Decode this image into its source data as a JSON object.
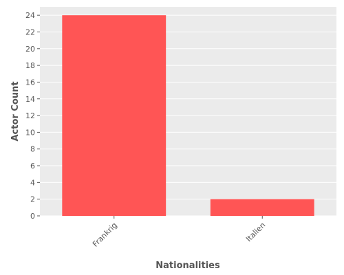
{
  "chart_data": {
    "type": "bar",
    "categories": [
      "Frankrig",
      "Italien"
    ],
    "values": [
      24,
      2
    ],
    "title": "",
    "xlabel": "Nationalities",
    "ylabel": "Actor Count",
    "ylim": [
      0,
      25
    ],
    "yticks": [
      0,
      2,
      4,
      6,
      8,
      10,
      12,
      14,
      16,
      18,
      20,
      22,
      24
    ],
    "grid": true,
    "legend": "none",
    "colors": {
      "bar": "#ff5555",
      "panel": "#ebebeb",
      "grid": "#ffffff",
      "text": "#555555"
    }
  }
}
